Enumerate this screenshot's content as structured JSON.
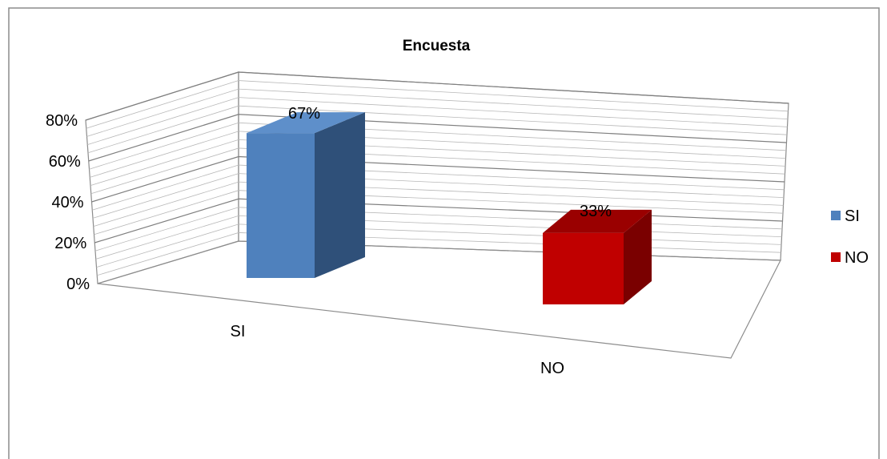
{
  "chart_data": {
    "type": "bar",
    "title": "Encuesta",
    "categories": [
      "SI",
      "NO"
    ],
    "series": [
      {
        "name": "SI",
        "values": [
          0.67,
          null
        ],
        "labels": [
          "67%",
          null
        ]
      },
      {
        "name": "NO",
        "values": [
          null,
          0.33
        ],
        "labels": [
          null,
          "33%"
        ]
      }
    ],
    "yticks": [
      "0%",
      "20%",
      "40%",
      "60%",
      "80%"
    ],
    "ylim": [
      0,
      0.8
    ],
    "grid": true,
    "legend": "right",
    "colors": {
      "SI": {
        "front": "#4f81bd",
        "side": "#2f5079",
        "top": "#5e8fca"
      },
      "NO": {
        "front": "#c00000",
        "side": "#7a0000",
        "top": "#9a0000"
      }
    }
  }
}
